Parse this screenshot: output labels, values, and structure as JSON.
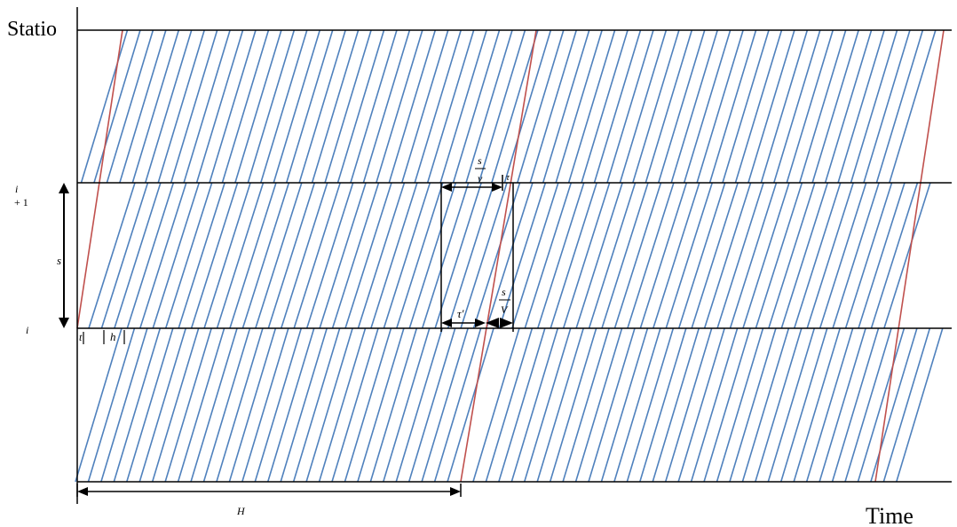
{
  "axes": {
    "y_label": "Statio",
    "x_label": "Time"
  },
  "stations": [
    {
      "label_top": "i",
      "label_bottom": "+ 1"
    },
    {
      "label": "i"
    }
  ],
  "annotations": {
    "spacing": "s",
    "headway": "h",
    "dwell_mark": "t",
    "period": "H",
    "tau_prime": "τ'",
    "tau": "τ",
    "s_over_v_num": "s",
    "s_over_v_den": "v",
    "s_over_V_num": "s",
    "s_over_V_den": "V"
  },
  "colors": {
    "frequent_trains": "#4f81bd",
    "express_trains": "#c0504d",
    "axes": "#000000"
  }
}
